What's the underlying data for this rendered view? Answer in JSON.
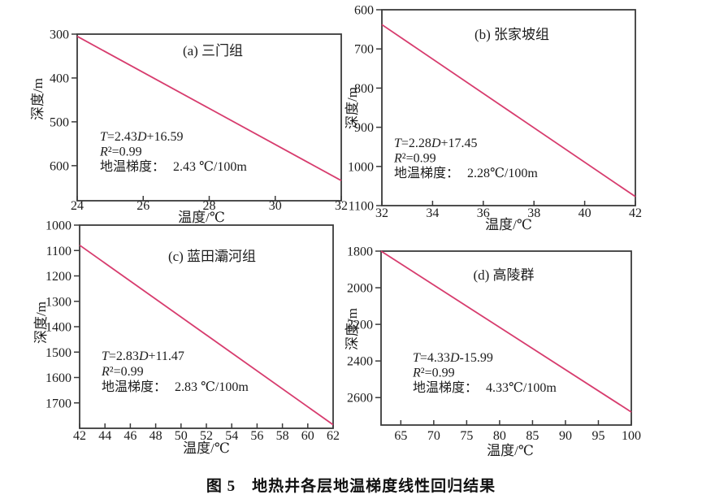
{
  "figure": {
    "caption": "图 5　地热井各层地温梯度线性回归结果"
  },
  "colors": {
    "regression_line": "#d73c6e",
    "axis": "#3a3a3a",
    "text": "#1c1c1c",
    "background": "#ffffff"
  },
  "chart_data": [
    {
      "type": "line",
      "panel_id": "a",
      "title": "(a) 三门组",
      "xlabel": "温度/℃",
      "ylabel": "深度/m",
      "xlim": [
        24,
        32
      ],
      "x_ticks": [
        24,
        26,
        28,
        30,
        32
      ],
      "ylim_top_to_bottom": [
        300,
        680
      ],
      "y_ticks": [
        300,
        400,
        500,
        600
      ],
      "y_axis_inverted": true,
      "grid": false,
      "legend": "none",
      "series": [
        {
          "name": "regression-line",
          "x": [
            24,
            32
          ],
          "y": [
            305,
            634
          ]
        }
      ],
      "annotation": {
        "equation": "T=2.43D+16.59",
        "r_squared": "R²=0.99",
        "gradient_label": "地温梯度：",
        "gradient_value": "2.43 ℃/100m"
      }
    },
    {
      "type": "line",
      "panel_id": "b",
      "title": "(b) 张家坡组",
      "xlabel": "温度/℃",
      "ylabel": "深度/m",
      "xlim": [
        32,
        42
      ],
      "x_ticks": [
        32,
        34,
        36,
        38,
        40,
        42
      ],
      "ylim_top_to_bottom": [
        600,
        1100
      ],
      "y_ticks": [
        600,
        700,
        800,
        900,
        1000,
        1100
      ],
      "y_axis_inverted": true,
      "grid": false,
      "legend": "none",
      "series": [
        {
          "name": "regression-line",
          "x": [
            32,
            42
          ],
          "y": [
            638,
            1077
          ]
        }
      ],
      "annotation": {
        "equation": "T=2.28D+17.45",
        "r_squared": "R²=0.99",
        "gradient_label": "地温梯度：",
        "gradient_value": "2.28℃/100m"
      }
    },
    {
      "type": "line",
      "panel_id": "c",
      "title": "(c) 蓝田灞河组",
      "xlabel": "温度/℃",
      "ylabel": "深度/m",
      "xlim": [
        42,
        62
      ],
      "x_ticks": [
        42,
        44,
        46,
        48,
        50,
        52,
        54,
        56,
        58,
        60,
        62
      ],
      "ylim_top_to_bottom": [
        1000,
        1800
      ],
      "y_ticks": [
        1000,
        1100,
        1200,
        1300,
        1400,
        1500,
        1600,
        1700
      ],
      "y_axis_inverted": true,
      "grid": false,
      "legend": "none",
      "series": [
        {
          "name": "regression-line",
          "x": [
            42,
            62
          ],
          "y": [
            1079,
            1786
          ]
        }
      ],
      "annotation": {
        "equation": "T=2.83D+11.47",
        "r_squared": "R²=0.99",
        "gradient_label": "地温梯度：",
        "gradient_value": "2.83 ℃/100m"
      }
    },
    {
      "type": "line",
      "panel_id": "d",
      "title": "(d) 高陵群",
      "xlabel": "温度/℃",
      "ylabel": "深度/m",
      "xlim": [
        62,
        100
      ],
      "x_ticks": [
        65,
        70,
        75,
        80,
        85,
        90,
        95,
        100
      ],
      "ylim_top_to_bottom": [
        1800,
        2750
      ],
      "y_ticks": [
        1800,
        2000,
        2200,
        2400,
        2600
      ],
      "y_axis_inverted": true,
      "grid": false,
      "legend": "none",
      "series": [
        {
          "name": "regression-line",
          "x": [
            62,
            100
          ],
          "y": [
            1800,
            2679
          ]
        }
      ],
      "annotation": {
        "equation": "T=4.33D-15.99",
        "r_squared": "R²=0.99",
        "gradient_label": "地温梯度：",
        "gradient_value": "4.33℃/100m"
      }
    }
  ]
}
